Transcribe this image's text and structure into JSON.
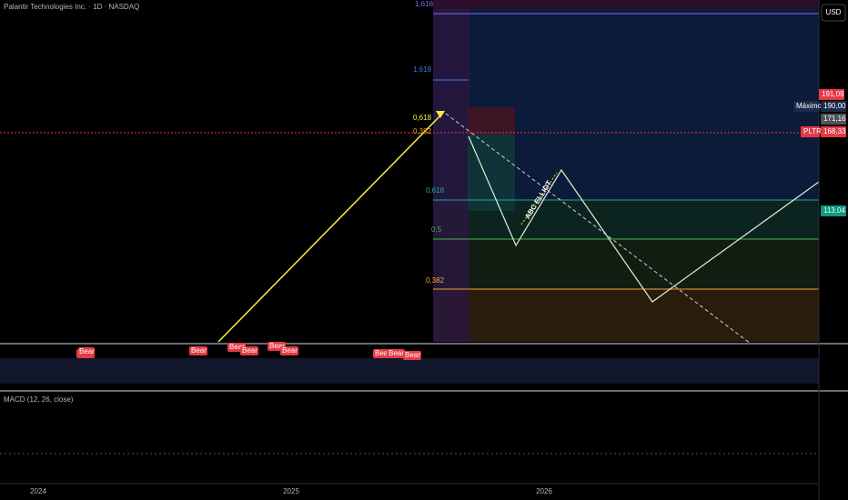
{
  "header": {
    "title": "Palantir Technologies Inc. · 1D · NASDAQ"
  },
  "price_scale": {
    "currency": "USD",
    "tags": [
      {
        "text": "191,09",
        "kind": "high"
      },
      {
        "text": "Máximo",
        "kind": "label"
      },
      {
        "text": "190,00",
        "kind": "max"
      },
      {
        "text": "171,16",
        "kind": "prev"
      },
      {
        "text": "PLTR",
        "kind": "symbol"
      },
      {
        "text": "168,33",
        "kind": "last"
      },
      {
        "text": "113,04",
        "kind": "target"
      }
    ]
  },
  "fib_labels": [
    "1,618",
    "1,618",
    "0,618",
    "0,382",
    "0,618",
    "0,5",
    "0,382"
  ],
  "annotation": "ABC ELLIOT",
  "rsi": {
    "signals": [
      "Bear",
      "Bear",
      "Bear",
      "Bear",
      "Bear",
      "Bear",
      "Bear",
      "Bear",
      "Bear",
      "Bear"
    ]
  },
  "macd": {
    "title": "MACD (12, 26, close)"
  },
  "time_axis": [
    "2024",
    "2025",
    "2026"
  ]
}
